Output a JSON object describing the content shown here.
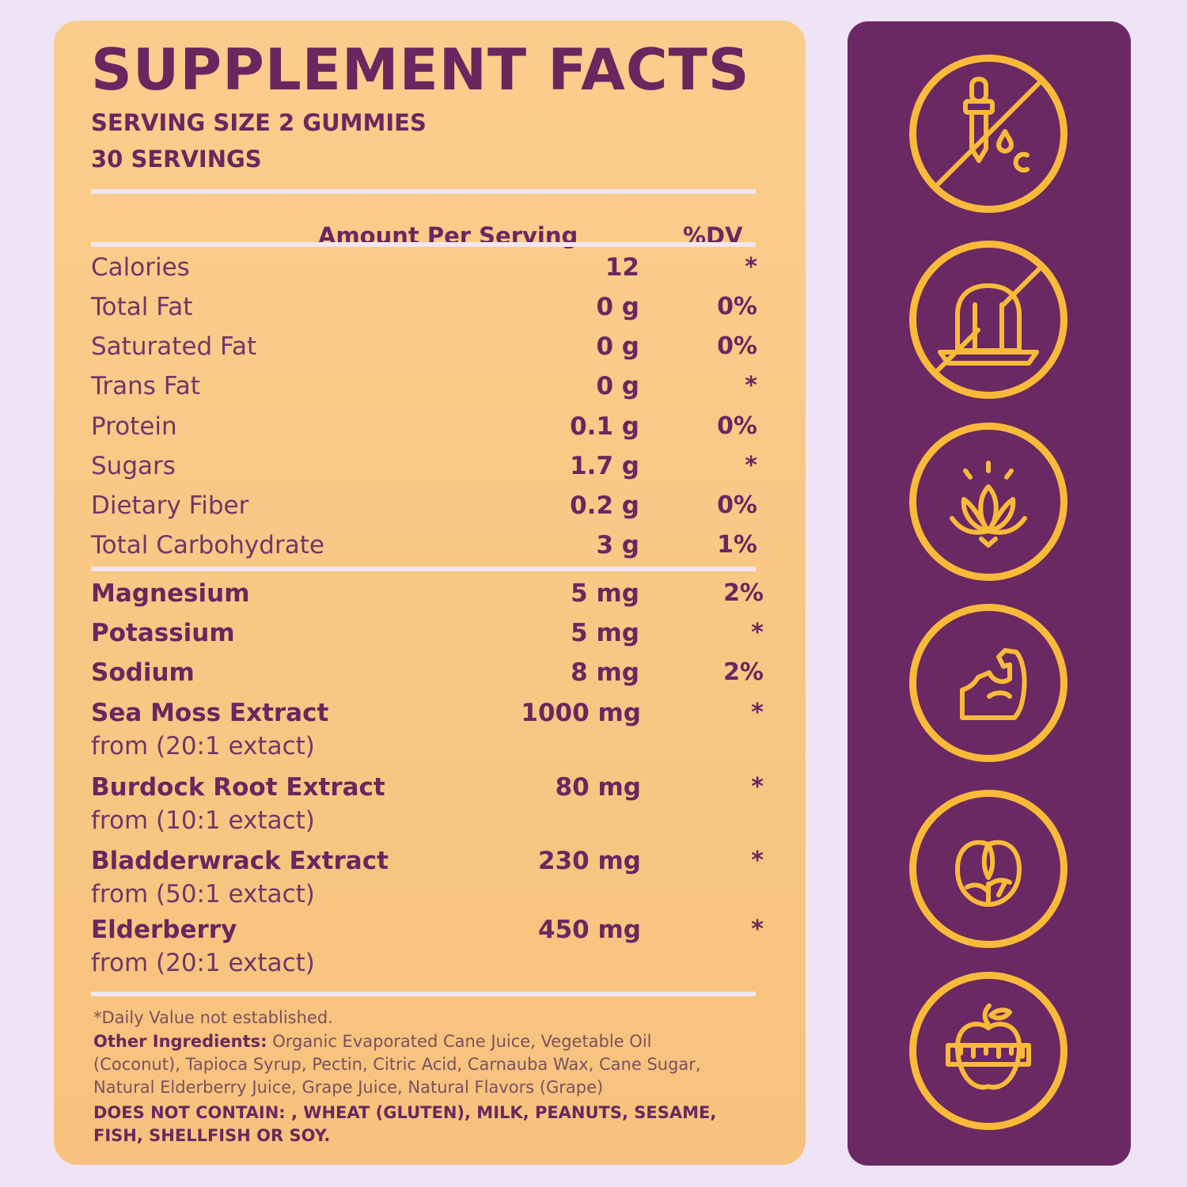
{
  "facts": {
    "title": "SUPPLEMENT FACTS",
    "serving_size": "SERVING SIZE 2 GUMMIES",
    "servings": "30 SERVINGS",
    "header_amount": "Amount Per Serving",
    "header_dv": "%DV",
    "basic_rows": [
      {
        "label": "Calories",
        "amount": "12",
        "dv": "*"
      },
      {
        "label": "Total Fat",
        "amount": "0 g",
        "dv": "0%"
      },
      {
        "label": "Saturated Fat",
        "amount": "0 g",
        "dv": "0%"
      },
      {
        "label": "Trans Fat",
        "amount": "0 g",
        "dv": "*"
      },
      {
        "label": "Protein",
        "amount": "0.1 g",
        "dv": "0%"
      },
      {
        "label": "Sugars",
        "amount": "1.7 g",
        "dv": "*"
      },
      {
        "label": "Dietary Fiber",
        "amount": "0.2 g",
        "dv": "0%"
      },
      {
        "label": "Total Carbohydrate",
        "amount": "3 g",
        "dv": "1%"
      }
    ],
    "minerals": [
      {
        "label": "Magnesium",
        "amount": "5 mg",
        "dv": "2%"
      },
      {
        "label": "Potassium",
        "amount": "5 mg",
        "dv": "*"
      },
      {
        "label": "Sodium",
        "amount": "8 mg",
        "dv": "2%"
      }
    ],
    "extracts": [
      {
        "label": "Sea Moss Extract",
        "from": "from (20:1 extact)",
        "amount": "1000 mg",
        "dv": "*"
      },
      {
        "label": "Burdock Root Extract",
        "from": "from (10:1 extact)",
        "amount": "80 mg",
        "dv": "*"
      },
      {
        "label": "Bladderwrack Extract",
        "from": "from (50:1 extact)",
        "amount": "230 mg",
        "dv": "*"
      },
      {
        "label": "Elderberry",
        "from": "from (20:1 extact)",
        "amount": "450 mg",
        "dv": "*"
      }
    ],
    "footnote": "*Daily Value not established.",
    "other_ingredients_label": "Other Ingredients:",
    "other_ingredients_line1": " Organic Evaporated Cane Juice, Vegetable Oil",
    "other_ingredients_line2": "(Coconut), Tapioca Syrup, Pectin, Citric Acid, Carnauba Wax, Cane Sugar,",
    "other_ingredients_line3": "Natural Elderberry Juice, Grape Juice, Natural Flavors (Grape)",
    "does_not_contain_line1": "DOES NOT CONTAIN: , WHEAT (GLUTEN), MILK, PEANUTS, SESAME,",
    "does_not_contain_line2": "FISH, SHELLFISH OR SOY."
  },
  "icons": [
    "no-dropper-icon",
    "no-gelatin-icon",
    "lotus-icon",
    "muscle-arm-icon",
    "leaves-icon",
    "apple-measuring-tape-icon"
  ],
  "colors": {
    "panel": "#f9c784",
    "purple": "#6a2962",
    "accent": "#f9ba3a",
    "background": "#efe3f6"
  }
}
